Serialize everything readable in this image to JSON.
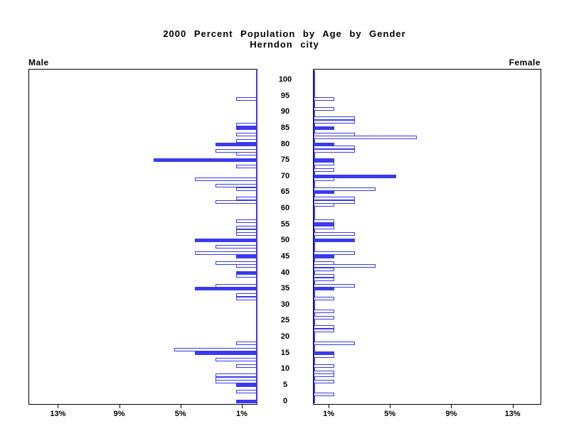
{
  "title": {
    "line1": "2000 Percent Population by Age by Gender",
    "line2": "Herndon city"
  },
  "panels": {
    "male_label": "Male",
    "female_label": "Female"
  },
  "colors": {
    "bar_outline": "#3a3aee",
    "highlight_fill": "#3a3aee",
    "bar_fill": "#ffffff",
    "axis_color": "#000000"
  },
  "axis": {
    "age_tick_labels": [
      "0",
      "5",
      "10",
      "15",
      "20",
      "25",
      "30",
      "35",
      "40",
      "45",
      "50",
      "55",
      "60",
      "65",
      "70",
      "75",
      "80",
      "85",
      "90",
      "95",
      "100"
    ],
    "male_pct_tick_labels": [
      "13%",
      "9%",
      "5%",
      "1%"
    ],
    "female_pct_tick_labels": [
      "1%",
      "5%",
      "9%",
      "13%"
    ]
  },
  "chart_data": {
    "type": "bar",
    "subtype": "population-pyramid",
    "title": "2000 Percent Population by Age by Gender",
    "subtitle": "Herndon city",
    "age_axis": {
      "min": 0,
      "max": 100,
      "step": 5
    },
    "pct_axis": {
      "ticks": [
        1,
        5,
        9,
        13
      ],
      "unit": "%",
      "max": 15
    },
    "highlight_rule": "bars at ages divisible by 5 are solid blue; all other bars are white with blue outline",
    "legend_position": "none",
    "grid": false,
    "series": [
      {
        "name": "Male",
        "side": "left",
        "points": [
          [
            0,
            1.35
          ],
          [
            3,
            1.35
          ],
          [
            5,
            1.35
          ],
          [
            6,
            2.7
          ],
          [
            7,
            2.7
          ],
          [
            8,
            2.7
          ],
          [
            11,
            1.35
          ],
          [
            13,
            2.7
          ],
          [
            15,
            4.05
          ],
          [
            16,
            5.4
          ],
          [
            18,
            1.35
          ],
          [
            32,
            1.35
          ],
          [
            33,
            1.35
          ],
          [
            35,
            4.05
          ],
          [
            36,
            2.7
          ],
          [
            39,
            1.35
          ],
          [
            40,
            1.35
          ],
          [
            42,
            1.35
          ],
          [
            43,
            2.7
          ],
          [
            45,
            1.35
          ],
          [
            46,
            4.05
          ],
          [
            48,
            2.7
          ],
          [
            50,
            4.05
          ],
          [
            52,
            1.35
          ],
          [
            53,
            1.35
          ],
          [
            54,
            1.35
          ],
          [
            56,
            1.35
          ],
          [
            62,
            2.7
          ],
          [
            63,
            1.35
          ],
          [
            66,
            1.35
          ],
          [
            67,
            2.7
          ],
          [
            69,
            4.05
          ],
          [
            73,
            1.35
          ],
          [
            75,
            6.75
          ],
          [
            77,
            1.35
          ],
          [
            78,
            2.7
          ],
          [
            80,
            2.7
          ],
          [
            81,
            1.35
          ],
          [
            83,
            1.35
          ],
          [
            85,
            1.35
          ],
          [
            86,
            1.35
          ],
          [
            94,
            1.35
          ]
        ]
      },
      {
        "name": "Female",
        "side": "right",
        "points": [
          [
            2,
            1.35
          ],
          [
            6,
            1.35
          ],
          [
            8,
            1.35
          ],
          [
            9,
            1.35
          ],
          [
            11,
            1.35
          ],
          [
            14,
            1.35
          ],
          [
            15,
            1.35
          ],
          [
            18,
            2.7
          ],
          [
            22,
            1.35
          ],
          [
            23,
            1.35
          ],
          [
            26,
            1.35
          ],
          [
            28,
            1.35
          ],
          [
            32,
            1.35
          ],
          [
            35,
            1.35
          ],
          [
            36,
            2.7
          ],
          [
            38,
            1.35
          ],
          [
            39,
            1.35
          ],
          [
            41,
            1.35
          ],
          [
            42,
            4.05
          ],
          [
            43,
            1.35
          ],
          [
            45,
            1.35
          ],
          [
            46,
            2.7
          ],
          [
            50,
            2.7
          ],
          [
            52,
            2.7
          ],
          [
            54,
            1.35
          ],
          [
            55,
            1.35
          ],
          [
            56,
            1.35
          ],
          [
            61,
            1.35
          ],
          [
            62,
            2.7
          ],
          [
            63,
            2.7
          ],
          [
            65,
            1.35
          ],
          [
            66,
            4.05
          ],
          [
            69,
            1.35
          ],
          [
            70,
            5.4
          ],
          [
            72,
            1.35
          ],
          [
            74,
            1.35
          ],
          [
            75,
            1.35
          ],
          [
            78,
            2.7
          ],
          [
            79,
            2.7
          ],
          [
            80,
            1.35
          ],
          [
            82,
            6.75
          ],
          [
            83,
            2.7
          ],
          [
            85,
            1.35
          ],
          [
            87,
            2.7
          ],
          [
            88,
            2.7
          ],
          [
            91,
            1.35
          ],
          [
            94,
            1.35
          ]
        ]
      }
    ]
  }
}
